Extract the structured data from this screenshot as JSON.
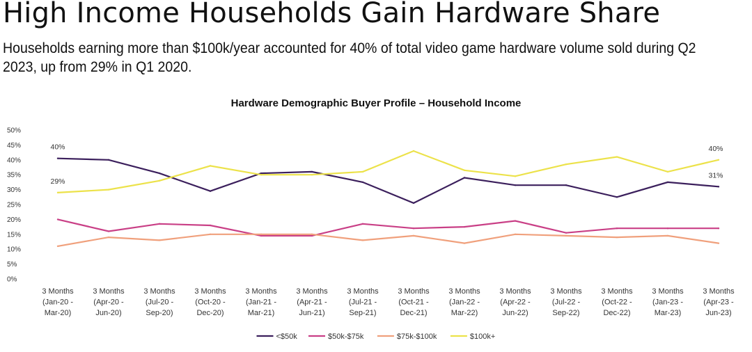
{
  "header": {
    "headline": "High Income Households Gain Hardware Share",
    "subtitle": "Households earning more than $100k/year accounted for 40% of total video game hardware volume sold during Q2 2023, up from 29% in Q1 2020."
  },
  "chart_data": {
    "type": "line",
    "title": "Hardware Demographic Buyer Profile – Household Income",
    "xlabel": "",
    "ylabel": "",
    "ylim": [
      0,
      50
    ],
    "y_ticks": [
      "0%",
      "5%",
      "10%",
      "15%",
      "20%",
      "25%",
      "30%",
      "35%",
      "40%",
      "45%",
      "50%"
    ],
    "grid": false,
    "legend_position": "bottom",
    "categories": [
      [
        "3 Months",
        "(Jan-20 -",
        "Mar-20)"
      ],
      [
        "3 Months",
        "(Apr-20 -",
        "Jun-20)"
      ],
      [
        "3 Months",
        "(Jul-20 -",
        "Sep-20)"
      ],
      [
        "3 Months",
        "(Oct-20 -",
        "Dec-20)"
      ],
      [
        "3 Months",
        "(Jan-21 -",
        "Mar-21)"
      ],
      [
        "3 Months",
        "(Apr-21 -",
        "Jun-21)"
      ],
      [
        "3 Months",
        "(Jul-21 -",
        "Sep-21)"
      ],
      [
        "3 Months",
        "(Oct-21 -",
        "Dec-21)"
      ],
      [
        "3 Months",
        "(Jan-22 -",
        "Mar-22)"
      ],
      [
        "3 Months",
        "(Apr-22 -",
        "Jun-22)"
      ],
      [
        "3 Months",
        "(Jul-22 -",
        "Sep-22)"
      ],
      [
        "3 Months",
        "(Oct-22 -",
        "Dec-22)"
      ],
      [
        "3 Months",
        "(Jan-23 -",
        "Mar-23)"
      ],
      [
        "3 Months",
        "(Apr-23 -",
        "Jun-23)"
      ]
    ],
    "series": [
      {
        "name": "<$50k",
        "color": "#3b1f5c",
        "values": [
          40.5,
          40,
          35.5,
          29.5,
          35.5,
          36,
          32.5,
          25.5,
          34,
          31.5,
          31.5,
          27.5,
          32.5,
          31
        ]
      },
      {
        "name": "$50k-$75k",
        "color": "#c93f86",
        "values": [
          20,
          16,
          18.5,
          18,
          14.5,
          14.5,
          18.5,
          17,
          17.5,
          19.5,
          15.5,
          17,
          17,
          17
        ]
      },
      {
        "name": "$75k-$100k",
        "color": "#f0a07c",
        "values": [
          11,
          14,
          13,
          15,
          15,
          15,
          13,
          14.5,
          12,
          15,
          14.5,
          14,
          14.5,
          12
        ]
      },
      {
        "name": "$100k+",
        "color": "#ece24a",
        "values": [
          29,
          30,
          33,
          38,
          35,
          35,
          36,
          43,
          36.5,
          34.5,
          38.5,
          41,
          36,
          40
        ]
      }
    ],
    "annotations": [
      {
        "text": "40%",
        "series": 0,
        "point": 0,
        "place": "above"
      },
      {
        "text": "29%",
        "series": 3,
        "point": 0,
        "place": "above"
      },
      {
        "text": "40%",
        "series": 3,
        "point": 13,
        "place": "above"
      },
      {
        "text": "31%",
        "series": 0,
        "point": 13,
        "place": "above"
      }
    ]
  }
}
